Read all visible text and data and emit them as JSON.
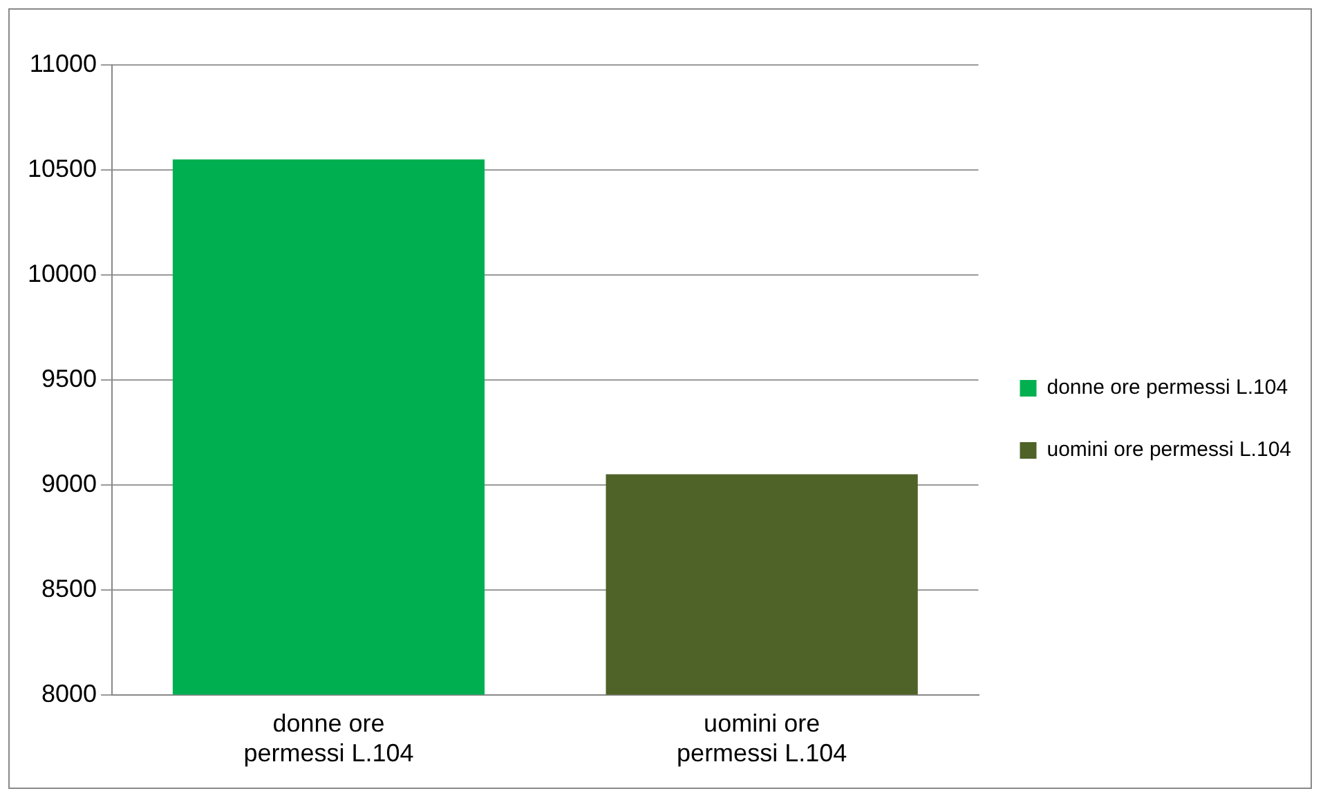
{
  "chart_data": {
    "type": "bar",
    "categories": [
      "donne ore permessi L.104",
      "uomini ore permessi L.104"
    ],
    "series": [
      {
        "name": "donne ore permessi L.104",
        "color": "#00b050",
        "values": [
          10550,
          null
        ]
      },
      {
        "name": "uomini ore permessi L.104",
        "color": "#4f6228",
        "values": [
          null,
          9050
        ]
      }
    ],
    "ylim": [
      8000,
      11000
    ],
    "yticks": [
      8000,
      8500,
      9000,
      9500,
      10000,
      10500,
      11000
    ],
    "grid": "y",
    "legend": "right"
  }
}
